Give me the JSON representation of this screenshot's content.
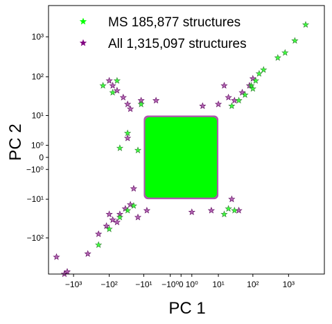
{
  "chart_data": {
    "type": "scatter",
    "xlabel": "PC 1",
    "ylabel": "PC 2",
    "xscale": "symlog",
    "yscale": "symlog",
    "xlim": [
      -5000,
      10000
    ],
    "ylim": [
      -800,
      6000
    ],
    "x_ticks": [
      {
        "value": -1000,
        "label": "−10³"
      },
      {
        "value": -100,
        "label": "−10²"
      },
      {
        "value": -10,
        "label": "−10¹"
      },
      {
        "value": -1,
        "label": "−10⁰"
      },
      {
        "value": 0,
        "label": "0"
      },
      {
        "value": 1,
        "label": "10⁰"
      },
      {
        "value": 10,
        "label": "10¹"
      },
      {
        "value": 100,
        "label": "10²"
      },
      {
        "value": 1000,
        "label": "10³"
      }
    ],
    "y_ticks": [
      {
        "value": 1000,
        "label": "10³"
      },
      {
        "value": 100,
        "label": "10²"
      },
      {
        "value": 10,
        "label": "10¹"
      },
      {
        "value": 1,
        "label": "10⁰"
      },
      {
        "value": 0,
        "label": "0"
      },
      {
        "value": -1,
        "label": "−10⁰"
      },
      {
        "value": -10,
        "label": "−10¹"
      },
      {
        "value": -100,
        "label": "−10²"
      }
    ],
    "legend_position": "top-left",
    "grid": false,
    "marker": "star",
    "series": [
      {
        "name": "All 1,315,097 structures",
        "color": "#800080",
        "core": {
          "x": [
            -10,
            10
          ],
          "y": [
            -10,
            10
          ]
        },
        "outliers": [
          {
            "x": -3000,
            "y": -300
          },
          {
            "x": -1800,
            "y": -800
          },
          {
            "x": -1500,
            "y": -700
          },
          {
            "x": -400,
            "y": -250
          },
          {
            "x": -200,
            "y": -80
          },
          {
            "x": -120,
            "y": -50
          },
          {
            "x": -80,
            "y": -35
          },
          {
            "x": -60,
            "y": -40
          },
          {
            "x": -50,
            "y": -25
          },
          {
            "x": -35,
            "y": -18
          },
          {
            "x": -25,
            "y": -14
          },
          {
            "x": -100,
            "y": -25
          },
          {
            "x": -40,
            "y": 30
          },
          {
            "x": -30,
            "y": 20
          },
          {
            "x": -60,
            "y": 45
          },
          {
            "x": -80,
            "y": 60
          },
          {
            "x": -100,
            "y": 80
          },
          {
            "x": -25,
            "y": 15
          },
          {
            "x": -12,
            "y": 25
          },
          {
            "x": -20,
            "y": -5
          },
          {
            "x": -30,
            "y": 2
          },
          {
            "x": -15,
            "y": -30
          },
          {
            "x": 20,
            "y": 30
          },
          {
            "x": 30,
            "y": 25
          },
          {
            "x": 50,
            "y": 40
          },
          {
            "x": 80,
            "y": 60
          },
          {
            "x": 100,
            "y": 90
          },
          {
            "x": 15,
            "y": 60
          },
          {
            "x": 10,
            "y": 20
          },
          {
            "x": 25,
            "y": -10
          },
          {
            "x": 40,
            "y": -20
          },
          {
            "x": 6,
            "y": -20
          },
          {
            "x": 1,
            "y": -22
          },
          {
            "x": -4,
            "y": 25
          },
          {
            "x": -8,
            "y": -20
          },
          {
            "x": 3,
            "y": 18
          }
        ]
      },
      {
        "name": "MS 185,877 structures",
        "color": "#00ff00",
        "core": {
          "x": [
            -9,
            9
          ],
          "y": [
            -9,
            9
          ]
        },
        "outliers": [
          {
            "x": 3000,
            "y": 2000
          },
          {
            "x": 1500,
            "y": 800
          },
          {
            "x": 800,
            "y": 400
          },
          {
            "x": 500,
            "y": 300
          },
          {
            "x": 200,
            "y": 150
          },
          {
            "x": 150,
            "y": 120
          },
          {
            "x": 120,
            "y": 80
          },
          {
            "x": 90,
            "y": 60
          },
          {
            "x": 60,
            "y": 35
          },
          {
            "x": 40,
            "y": 25
          },
          {
            "x": 25,
            "y": 18
          },
          {
            "x": 100,
            "y": 50
          },
          {
            "x": -150,
            "y": 60
          },
          {
            "x": -60,
            "y": 80
          },
          {
            "x": -80,
            "y": 40
          },
          {
            "x": -200,
            "y": -150
          },
          {
            "x": -100,
            "y": -60
          },
          {
            "x": -50,
            "y": -30
          },
          {
            "x": -30,
            "y": -20
          },
          {
            "x": -20,
            "y": -15
          },
          {
            "x": -15,
            "y": 0.5
          },
          {
            "x": -30,
            "y": 3
          },
          {
            "x": 20,
            "y": -18
          },
          {
            "x": 30,
            "y": -20
          },
          {
            "x": 15,
            "y": -25
          },
          {
            "x": -12,
            "y": 20
          },
          {
            "x": -50,
            "y": 0.7
          }
        ]
      }
    ]
  }
}
